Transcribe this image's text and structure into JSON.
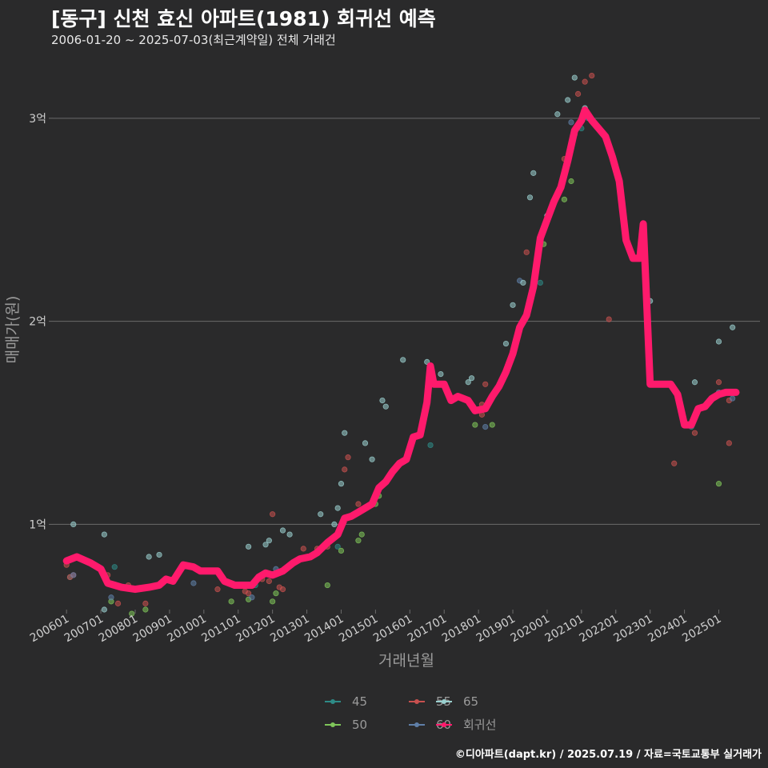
{
  "title": "[동구] 신천 효신 아파트(1981) 회귀선 예측",
  "subtitle": "2006-01-20 ~ 2025-07-03(최근계약일) 전체 거래건",
  "caption": "©디아파트(dapt.kr) / 2025.07.19 / 자료=국토교통부 실거래가",
  "colors": {
    "background": "#2a2a2b",
    "grid": "#6b6b6b",
    "regression": "#ff1a6c",
    "s45": "#2e8b87",
    "s50": "#7fc65a",
    "s55": "#c8504f",
    "s60": "#5f7fa8",
    "s65": "#9ad0cf"
  },
  "chart_data": {
    "type": "scatter",
    "title": "[동구] 신천 효신 아파트(1981) 회귀선 예측",
    "xlabel": "거래년월",
    "ylabel": "매매가(원)",
    "x_unit": "year (decimal)",
    "y_unit": "억원",
    "xlim": [
      2005.6,
      2026.2
    ],
    "ylim": [
      0.58,
      3.22
    ],
    "y_ticks": [
      {
        "value": 1,
        "label": "1억"
      },
      {
        "value": 2,
        "label": "2억"
      },
      {
        "value": 3,
        "label": "3억"
      }
    ],
    "x_ticks": [
      {
        "value": 2006.0,
        "label": "200601"
      },
      {
        "value": 2007.0,
        "label": "200701"
      },
      {
        "value": 2008.0,
        "label": "200801"
      },
      {
        "value": 2009.0,
        "label": "200901"
      },
      {
        "value": 2010.0,
        "label": "201001"
      },
      {
        "value": 2011.0,
        "label": "201101"
      },
      {
        "value": 2012.0,
        "label": "201201"
      },
      {
        "value": 2013.0,
        "label": "201301"
      },
      {
        "value": 2014.0,
        "label": "201401"
      },
      {
        "value": 2015.0,
        "label": "201501"
      },
      {
        "value": 2016.0,
        "label": "201601"
      },
      {
        "value": 2017.0,
        "label": "201701"
      },
      {
        "value": 2018.0,
        "label": "201801"
      },
      {
        "value": 2019.0,
        "label": "201901"
      },
      {
        "value": 2020.0,
        "label": "202001"
      },
      {
        "value": 2021.0,
        "label": "202101"
      },
      {
        "value": 2022.0,
        "label": "202201"
      },
      {
        "value": 2023.0,
        "label": "202301"
      },
      {
        "value": 2024.0,
        "label": "202401"
      },
      {
        "value": 2025.0,
        "label": "202501"
      }
    ],
    "legend": [
      {
        "key": "s45",
        "label": "45"
      },
      {
        "key": "s55",
        "label": "55"
      },
      {
        "key": "s65",
        "label": "65"
      },
      {
        "key": "s50",
        "label": "50"
      },
      {
        "key": "s60",
        "label": "60"
      },
      {
        "key": "regression",
        "label": "회귀선"
      }
    ],
    "series": [
      {
        "name": "45",
        "key": "s45",
        "points": [
          [
            2006.1,
            0.74
          ],
          [
            2007.4,
            0.79
          ],
          [
            2010.2,
            0.77
          ],
          [
            2011.5,
            0.7
          ],
          [
            2013.9,
            0.89
          ],
          [
            2016.6,
            1.39
          ],
          [
            2019.8,
            2.19
          ],
          [
            2021.0,
            2.95
          ],
          [
            2024.2,
            1.48
          ]
        ]
      },
      {
        "name": "50",
        "key": "s50",
        "points": [
          [
            2007.3,
            0.62
          ],
          [
            2007.9,
            0.56
          ],
          [
            2008.3,
            0.58
          ],
          [
            2010.8,
            0.62
          ],
          [
            2011.3,
            0.63
          ],
          [
            2012.0,
            0.62
          ],
          [
            2012.1,
            0.66
          ],
          [
            2013.6,
            0.7
          ],
          [
            2014.0,
            0.87
          ],
          [
            2014.5,
            0.92
          ],
          [
            2014.6,
            0.95
          ],
          [
            2015.0,
            1.1
          ],
          [
            2015.1,
            1.14
          ],
          [
            2017.9,
            1.49
          ],
          [
            2018.4,
            1.49
          ],
          [
            2019.9,
            2.38
          ],
          [
            2020.5,
            2.6
          ],
          [
            2020.7,
            2.69
          ],
          [
            2025.0,
            1.2
          ]
        ]
      },
      {
        "name": "55",
        "key": "s55",
        "points": [
          [
            2006.0,
            0.8
          ],
          [
            2006.1,
            0.74
          ],
          [
            2006.2,
            0.75
          ],
          [
            2007.2,
            0.75
          ],
          [
            2007.5,
            0.61
          ],
          [
            2007.8,
            0.7
          ],
          [
            2008.3,
            0.61
          ],
          [
            2010.4,
            0.68
          ],
          [
            2011.2,
            0.67
          ],
          [
            2011.3,
            0.66
          ],
          [
            2011.7,
            0.73
          ],
          [
            2011.9,
            0.72
          ],
          [
            2012.0,
            1.05
          ],
          [
            2012.2,
            0.69
          ],
          [
            2012.3,
            0.68
          ],
          [
            2012.9,
            0.88
          ],
          [
            2013.3,
            0.88
          ],
          [
            2013.6,
            0.89
          ],
          [
            2014.1,
            1.27
          ],
          [
            2014.2,
            1.33
          ],
          [
            2014.5,
            1.1
          ],
          [
            2018.1,
            1.59
          ],
          [
            2018.1,
            1.54
          ],
          [
            2018.2,
            1.69
          ],
          [
            2019.4,
            2.34
          ],
          [
            2020.5,
            2.8
          ],
          [
            2020.8,
            2.92
          ],
          [
            2020.9,
            3.12
          ],
          [
            2021.1,
            3.18
          ],
          [
            2021.3,
            3.21
          ],
          [
            2021.8,
            2.01
          ],
          [
            2023.7,
            1.3
          ],
          [
            2024.3,
            1.45
          ],
          [
            2025.0,
            1.7
          ],
          [
            2025.3,
            1.61
          ],
          [
            2025.3,
            1.4
          ]
        ]
      },
      {
        "name": "60",
        "key": "s60",
        "points": [
          [
            2006.2,
            0.75
          ],
          [
            2007.3,
            0.64
          ],
          [
            2009.7,
            0.71
          ],
          [
            2011.4,
            0.64
          ],
          [
            2012.1,
            0.78
          ],
          [
            2018.2,
            1.48
          ],
          [
            2019.2,
            2.2
          ],
          [
            2020.7,
            2.98
          ],
          [
            2021.2,
            3.0
          ],
          [
            2025.0,
            1.65
          ],
          [
            2025.4,
            1.62
          ]
        ]
      },
      {
        "name": "65",
        "key": "s65",
        "points": [
          [
            2006.2,
            1.0
          ],
          [
            2007.1,
            0.95
          ],
          [
            2007.1,
            0.58
          ],
          [
            2008.4,
            0.84
          ],
          [
            2008.7,
            0.85
          ],
          [
            2011.3,
            0.89
          ],
          [
            2011.8,
            0.9
          ],
          [
            2011.9,
            0.92
          ],
          [
            2012.3,
            0.97
          ],
          [
            2012.5,
            0.95
          ],
          [
            2013.4,
            1.05
          ],
          [
            2013.8,
            1.0
          ],
          [
            2013.9,
            1.08
          ],
          [
            2014.0,
            1.2
          ],
          [
            2014.1,
            1.45
          ],
          [
            2014.7,
            1.4
          ],
          [
            2014.9,
            1.32
          ],
          [
            2015.2,
            1.61
          ],
          [
            2015.3,
            1.58
          ],
          [
            2015.8,
            1.81
          ],
          [
            2016.5,
            1.8
          ],
          [
            2016.9,
            1.74
          ],
          [
            2017.7,
            1.7
          ],
          [
            2017.8,
            1.72
          ],
          [
            2018.8,
            1.89
          ],
          [
            2019.0,
            2.08
          ],
          [
            2019.3,
            2.19
          ],
          [
            2019.5,
            2.61
          ],
          [
            2019.6,
            2.73
          ],
          [
            2020.0,
            2.52
          ],
          [
            2020.3,
            3.02
          ],
          [
            2020.6,
            3.09
          ],
          [
            2020.8,
            3.2
          ],
          [
            2021.1,
            3.05
          ],
          [
            2023.0,
            2.1
          ],
          [
            2024.3,
            1.7
          ],
          [
            2025.0,
            1.9
          ],
          [
            2025.4,
            1.97
          ]
        ]
      },
      {
        "name": "회귀선",
        "key": "regression",
        "type": "line",
        "points": [
          [
            2006.0,
            0.82
          ],
          [
            2006.3,
            0.84
          ],
          [
            2006.7,
            0.81
          ],
          [
            2007.0,
            0.78
          ],
          [
            2007.2,
            0.71
          ],
          [
            2007.4,
            0.7
          ],
          [
            2007.6,
            0.69
          ],
          [
            2008.0,
            0.68
          ],
          [
            2008.4,
            0.69
          ],
          [
            2008.7,
            0.7
          ],
          [
            2008.9,
            0.73
          ],
          [
            2009.1,
            0.72
          ],
          [
            2009.4,
            0.8
          ],
          [
            2009.7,
            0.79
          ],
          [
            2009.9,
            0.77
          ],
          [
            2010.2,
            0.77
          ],
          [
            2010.4,
            0.77
          ],
          [
            2010.6,
            0.72
          ],
          [
            2010.9,
            0.7
          ],
          [
            2011.1,
            0.7
          ],
          [
            2011.4,
            0.7
          ],
          [
            2011.6,
            0.74
          ],
          [
            2011.8,
            0.76
          ],
          [
            2012.0,
            0.75
          ],
          [
            2012.3,
            0.77
          ],
          [
            2012.6,
            0.81
          ],
          [
            2012.8,
            0.83
          ],
          [
            2013.1,
            0.84
          ],
          [
            2013.3,
            0.86
          ],
          [
            2013.6,
            0.91
          ],
          [
            2013.9,
            0.95
          ],
          [
            2014.1,
            1.03
          ],
          [
            2014.3,
            1.04
          ],
          [
            2014.5,
            1.06
          ],
          [
            2014.7,
            1.08
          ],
          [
            2014.9,
            1.1
          ],
          [
            2015.1,
            1.18
          ],
          [
            2015.3,
            1.21
          ],
          [
            2015.5,
            1.26
          ],
          [
            2015.7,
            1.3
          ],
          [
            2015.9,
            1.32
          ],
          [
            2016.1,
            1.43
          ],
          [
            2016.3,
            1.44
          ],
          [
            2016.5,
            1.6
          ],
          [
            2016.6,
            1.78
          ],
          [
            2016.7,
            1.69
          ],
          [
            2017.0,
            1.69
          ],
          [
            2017.2,
            1.61
          ],
          [
            2017.4,
            1.63
          ],
          [
            2017.7,
            1.61
          ],
          [
            2017.9,
            1.56
          ],
          [
            2018.2,
            1.57
          ],
          [
            2018.4,
            1.63
          ],
          [
            2018.6,
            1.68
          ],
          [
            2018.8,
            1.75
          ],
          [
            2019.0,
            1.84
          ],
          [
            2019.2,
            1.97
          ],
          [
            2019.4,
            2.03
          ],
          [
            2019.6,
            2.17
          ],
          [
            2019.8,
            2.41
          ],
          [
            2020.0,
            2.5
          ],
          [
            2020.2,
            2.59
          ],
          [
            2020.4,
            2.66
          ],
          [
            2020.6,
            2.79
          ],
          [
            2020.8,
            2.94
          ],
          [
            2021.0,
            2.99
          ],
          [
            2021.1,
            3.04
          ],
          [
            2021.3,
            2.99
          ],
          [
            2021.5,
            2.95
          ],
          [
            2021.7,
            2.91
          ],
          [
            2021.9,
            2.81
          ],
          [
            2022.1,
            2.69
          ],
          [
            2022.3,
            2.4
          ],
          [
            2022.5,
            2.31
          ],
          [
            2022.7,
            2.31
          ],
          [
            2022.8,
            2.48
          ],
          [
            2022.9,
            2.09
          ],
          [
            2023.0,
            1.69
          ],
          [
            2023.2,
            1.69
          ],
          [
            2023.4,
            1.69
          ],
          [
            2023.6,
            1.69
          ],
          [
            2023.8,
            1.64
          ],
          [
            2024.0,
            1.49
          ],
          [
            2024.2,
            1.49
          ],
          [
            2024.4,
            1.57
          ],
          [
            2024.6,
            1.58
          ],
          [
            2024.8,
            1.62
          ],
          [
            2025.0,
            1.64
          ],
          [
            2025.2,
            1.65
          ],
          [
            2025.5,
            1.65
          ]
        ]
      }
    ]
  }
}
